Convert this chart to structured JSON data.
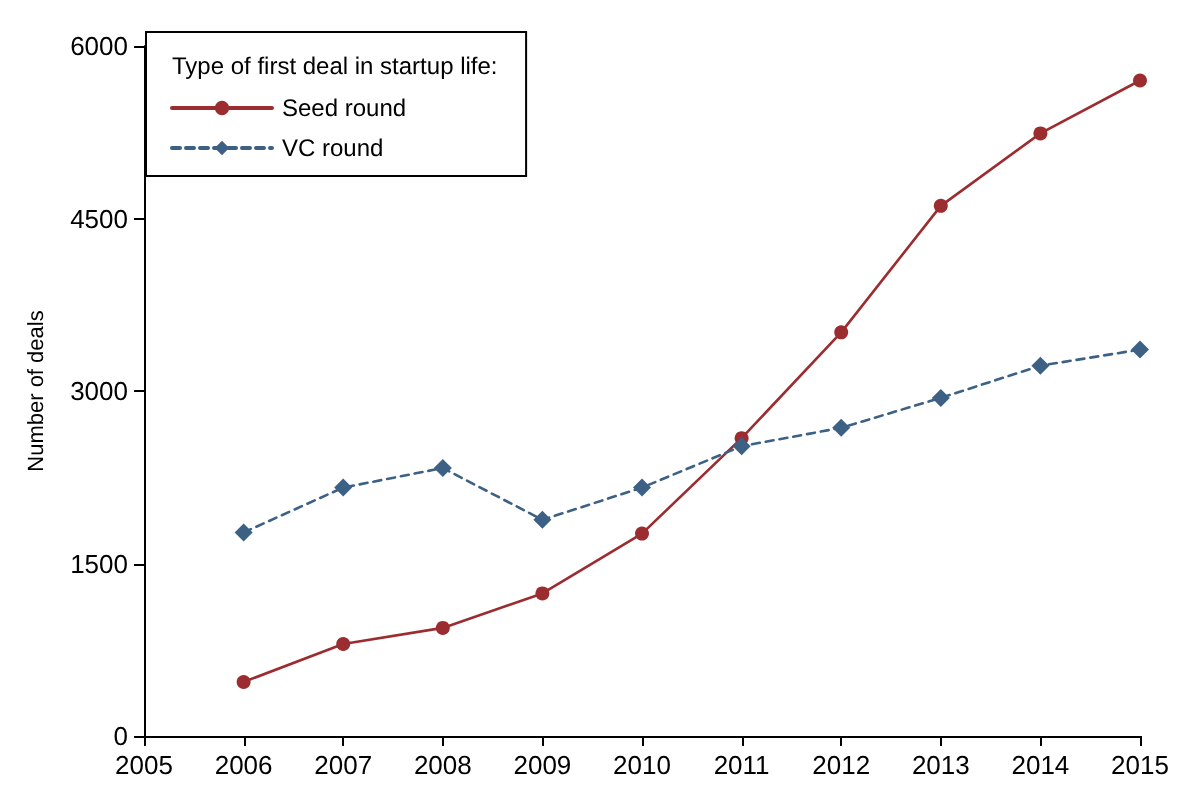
{
  "chart_data": {
    "type": "line",
    "x": [
      2006,
      2007,
      2008,
      2009,
      2010,
      2011,
      2012,
      2013,
      2014,
      2015
    ],
    "series": [
      {
        "name": "Seed round",
        "color": "#9b2d30",
        "marker": "circle",
        "line_style": "solid",
        "values": [
          470,
          800,
          940,
          1240,
          1760,
          2590,
          3510,
          4610,
          5240,
          5700
        ]
      },
      {
        "name": "VC round",
        "color": "#3c6185",
        "marker": "diamond",
        "line_style": "dashed",
        "values": [
          1770,
          2160,
          2330,
          1880,
          2160,
          2520,
          2680,
          2940,
          3220,
          3360
        ]
      }
    ],
    "ylabel": "Number of deals",
    "legend_title": "Type of first deal in startup life:",
    "legend": "top left",
    "grid": false,
    "xlim": [
      2005,
      2015
    ],
    "xticks": [
      2005,
      2006,
      2007,
      2008,
      2009,
      2010,
      2011,
      2012,
      2013,
      2014,
      2015
    ],
    "ylim": [
      0,
      6000
    ],
    "yticks": [
      0,
      1500,
      3000,
      4500,
      6000
    ]
  }
}
